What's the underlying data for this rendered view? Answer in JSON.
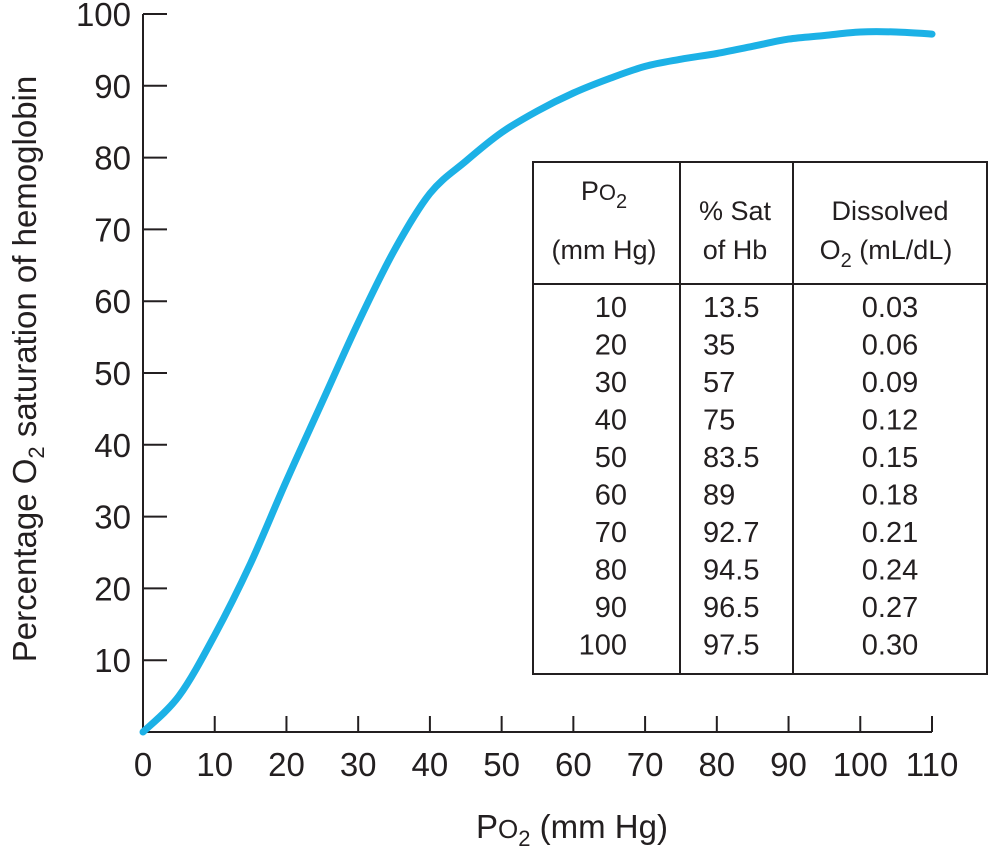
{
  "chart_data": {
    "type": "line",
    "xlabel": {
      "prefix": "P",
      "small": "O",
      "sub": "2",
      "suffix": " (mm Hg)"
    },
    "ylabel": {
      "prefix": "Percentage O",
      "sub": "2",
      "suffix": " saturation of hemoglobin"
    },
    "xlim": [
      0,
      110
    ],
    "ylim": [
      0,
      100
    ],
    "x_ticks": [
      "0",
      "10",
      "20",
      "30",
      "40",
      "50",
      "60",
      "70",
      "80",
      "90",
      "100",
      "110"
    ],
    "y_ticks": [
      "10",
      "20",
      "30",
      "40",
      "50",
      "60",
      "70",
      "80",
      "90",
      "100"
    ],
    "grid": false,
    "series": [
      {
        "color": "#1cb1e6",
        "x": [
          0,
          5,
          10,
          15,
          20,
          25,
          30,
          35,
          40,
          45,
          50,
          55,
          60,
          65,
          70,
          75,
          80,
          85,
          90,
          95,
          100,
          105,
          110
        ],
        "y": [
          0,
          5,
          13.5,
          23.5,
          35,
          46,
          57,
          67,
          75,
          79.5,
          83.5,
          86.5,
          89,
          91,
          92.7,
          93.7,
          94.5,
          95.5,
          96.5,
          97,
          97.5,
          97.5,
          97.2
        ]
      }
    ],
    "table": {
      "headers": [
        {
          "line1": {
            "prefix": "P",
            "small": "O",
            "sub": "2",
            "suffix": ""
          },
          "line2": "(mm Hg)"
        },
        {
          "line1": "% Sat",
          "line2": "of Hb"
        },
        {
          "line1": "Dissolved",
          "line2": {
            "prefix": "O",
            "sub": "2",
            "suffix": " (mL/dL)"
          }
        }
      ],
      "rows": [
        [
          "10",
          "13.5",
          "0.03"
        ],
        [
          "20",
          "35",
          "0.06"
        ],
        [
          "30",
          "57",
          "0.09"
        ],
        [
          "40",
          "75",
          "0.12"
        ],
        [
          "50",
          "83.5",
          "0.15"
        ],
        [
          "60",
          "89",
          "0.18"
        ],
        [
          "70",
          "92.7",
          "0.21"
        ],
        [
          "80",
          "94.5",
          "0.24"
        ],
        [
          "90",
          "96.5",
          "0.27"
        ],
        [
          "100",
          "97.5",
          "0.30"
        ]
      ]
    }
  }
}
